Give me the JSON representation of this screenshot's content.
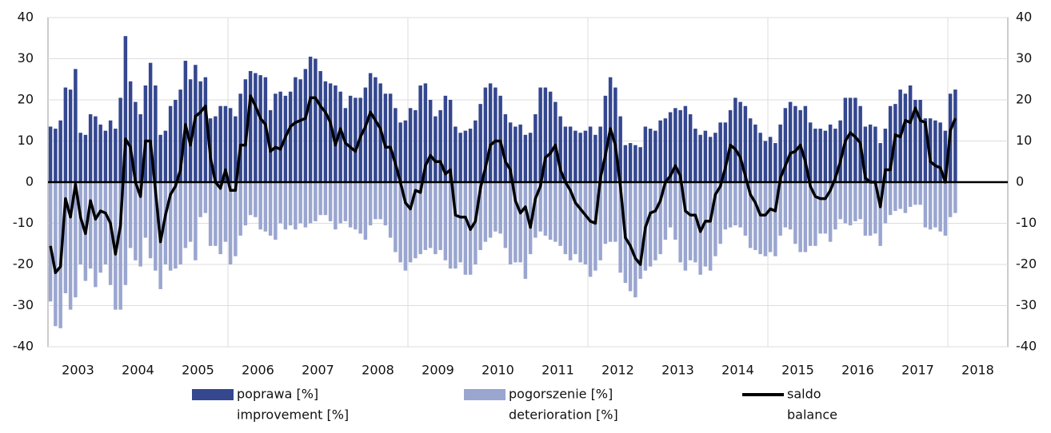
{
  "chart_data": {
    "type": "bar-line",
    "categories": [
      null,
      null,
      null,
      null,
      null,
      null,
      "2003",
      null,
      null,
      null,
      null,
      null,
      null,
      null,
      null,
      null,
      null,
      null,
      "2004",
      null,
      null,
      null,
      null,
      null,
      null,
      null,
      null,
      null,
      null,
      null,
      "2005",
      null,
      null,
      null,
      null,
      null,
      null,
      null,
      null,
      null,
      null,
      null,
      "2006",
      null,
      null,
      null,
      null,
      null,
      null,
      null,
      null,
      null,
      null,
      null,
      "2007",
      null,
      null,
      null,
      null,
      null,
      null,
      null,
      null,
      null,
      null,
      null,
      "2008",
      null,
      null,
      null,
      null,
      null,
      null,
      null,
      null,
      null,
      null,
      null,
      "2009",
      null,
      null,
      null,
      null,
      null,
      null,
      null,
      null,
      null,
      null,
      null,
      "2010",
      null,
      null,
      null,
      null,
      null,
      null,
      null,
      null,
      null,
      null,
      null,
      "2011",
      null,
      null,
      null,
      null,
      null,
      null,
      null,
      null,
      null,
      null,
      null,
      "2012",
      null,
      null,
      null,
      null,
      null,
      null,
      null,
      null,
      null,
      null,
      null,
      "2013",
      null,
      null,
      null,
      null,
      null,
      null,
      null,
      null,
      null,
      null,
      null,
      "2014",
      null,
      null,
      null,
      null,
      null,
      null,
      null,
      null,
      null,
      null,
      null,
      "2015",
      null,
      null,
      null,
      null,
      null,
      null,
      null,
      null,
      null,
      null,
      null,
      "2016",
      null,
      null,
      null,
      null,
      null,
      null,
      null,
      null,
      null,
      null,
      null,
      "2017",
      null,
      null,
      null,
      null,
      null,
      null,
      null,
      null,
      null,
      null,
      null,
      "2018",
      null,
      null,
      null,
      null,
      null
    ],
    "series": [
      {
        "name": [
          "poprawa [%]",
          "improvement [%]"
        ],
        "color": "#34478f",
        "kind": "bar",
        "values": [
          13.5,
          13,
          15,
          23,
          22.5,
          27.5,
          12,
          11.5,
          16.5,
          16,
          14,
          12.5,
          15,
          13,
          20.5,
          35.5,
          24.5,
          19.5,
          16.5,
          23.5,
          29,
          23.5,
          11.5,
          12.5,
          18.5,
          20,
          22.5,
          29.5,
          25,
          28.5,
          24.5,
          25.5,
          15.5,
          16,
          18.5,
          18.5,
          18,
          16,
          21.5,
          25,
          27,
          26.5,
          26,
          25.5,
          17.5,
          21.5,
          22,
          21,
          22,
          25.5,
          25,
          27.5,
          30.5,
          30,
          27,
          24.5,
          24,
          23.5,
          22,
          18,
          21,
          20.5,
          20.5,
          23,
          26.5,
          25.5,
          24,
          21.5,
          21.5,
          18,
          14.5,
          15,
          18,
          17.5,
          23.5,
          24,
          20,
          16,
          17.5,
          21,
          20,
          13.5,
          12,
          12.5,
          13,
          15,
          19,
          23,
          24,
          23,
          21,
          16.5,
          14.5,
          13.5,
          14,
          11.5,
          12,
          16.5,
          23,
          23,
          22,
          19.5,
          16,
          13.5,
          13.5,
          12.5,
          12,
          12.5,
          13.5,
          11.5,
          13.5,
          21,
          25.5,
          23,
          16,
          9,
          9.5,
          9,
          8.5,
          13.5,
          13,
          12.5,
          15,
          15.5,
          17,
          18,
          17.5,
          18.5,
          16.5,
          13,
          11.5,
          12.5,
          11,
          12,
          14.5,
          14.5,
          17.5,
          20.5,
          19.5,
          18.5,
          15.5,
          14,
          12,
          10,
          11,
          9.5,
          14,
          18,
          19.5,
          18.5,
          17.5,
          18.5,
          14.5,
          13,
          13,
          12.5,
          14,
          13,
          15,
          20.5,
          20.5,
          20.5,
          18.5,
          13.5,
          14,
          13.5,
          9.5,
          13,
          18.5,
          19,
          22.5,
          21.5,
          23.5,
          20,
          20,
          15.5,
          15.5,
          15,
          14.5,
          12.5,
          21.5,
          22.5,
          null,
          null,
          null,
          null,
          null,
          null,
          null,
          null,
          null,
          null
        ]
      },
      {
        "name": [
          "pogorszenie [%]",
          "deterioration [%]"
        ],
        "color": "#9aa6d0",
        "kind": "bar",
        "values": [
          -29,
          -35,
          -35.5,
          -27,
          -31,
          -28,
          -20,
          -24,
          -21,
          -25.5,
          -22,
          -20,
          -25,
          -31,
          -31,
          -25,
          -16,
          -19,
          -20.5,
          -13.5,
          -18.5,
          -21.5,
          -26,
          -20,
          -21.5,
          -21,
          -20,
          -16,
          -14.5,
          -19,
          -8.5,
          -7.5,
          -15.5,
          -15.5,
          -17.5,
          -14.5,
          -20,
          -18,
          -13,
          -10.5,
          -8,
          -8.5,
          -11.5,
          -12,
          -13,
          -14,
          -10,
          -11.5,
          -10.5,
          -11.5,
          -10,
          -11,
          -10,
          -9.5,
          -8,
          -8,
          -9.5,
          -11.5,
          -10,
          -9.5,
          -11,
          -11.5,
          -12.5,
          -14,
          -10.5,
          -9,
          -9,
          -10.5,
          -13.5,
          -17,
          -19.5,
          -21.5,
          -19.5,
          -18.5,
          -17.5,
          -16.5,
          -16,
          -17.5,
          -16.5,
          -19,
          -21,
          -21,
          -19.5,
          -22.5,
          -22.5,
          -20,
          -16.5,
          -14.5,
          -13.5,
          -12,
          -12.5,
          -16,
          -20,
          -19.5,
          -19.5,
          -23.5,
          -17.5,
          -13.5,
          -12,
          -13,
          -14,
          -14.5,
          -15.5,
          -17.5,
          -19,
          -17.5,
          -19.5,
          -20,
          -23,
          -21.5,
          -19,
          -15,
          -14.5,
          -14.5,
          -22,
          -24.5,
          -26.5,
          -28,
          -23.5,
          -21.5,
          -20.5,
          -19,
          -17.5,
          -14,
          -11,
          -14,
          -19.5,
          -21.5,
          -19,
          -19.5,
          -22.5,
          -20.5,
          -21.5,
          -18,
          -15,
          -11.5,
          -11,
          -10.5,
          -11,
          -13,
          -16,
          -16.5,
          -17.5,
          -18,
          -17,
          -18,
          -13,
          -11,
          -11.5,
          -15,
          -17,
          -17,
          -15.5,
          -15.5,
          -12.5,
          -12.5,
          -14.5,
          -11.5,
          -9,
          -10,
          -10.5,
          -9.5,
          -9,
          -13,
          -13,
          -12.5,
          -15.5,
          -10,
          -8,
          -7,
          -6.5,
          -7.5,
          -6,
          -5.5,
          -5.5,
          -11,
          -11.5,
          -11,
          -12,
          -13,
          -8.5,
          -7.5,
          null,
          null,
          null,
          null,
          null,
          null,
          null,
          null,
          null,
          null
        ]
      },
      {
        "name": [
          "saldo",
          "balance"
        ],
        "color": "#000000",
        "kind": "line",
        "values": [
          -15.5,
          -22,
          -20.5,
          -4,
          -8.5,
          -0.5,
          -8.5,
          -12.5,
          -4.5,
          -9,
          -7,
          -7.5,
          -10,
          -17.5,
          -10.5,
          10.5,
          8.5,
          0,
          -3.5,
          10,
          10,
          -2,
          -14.5,
          -8,
          -3,
          -1,
          3,
          14,
          9,
          16,
          17,
          18.5,
          6,
          0,
          -1.5,
          3,
          -2,
          -2,
          9,
          9,
          21,
          18.5,
          15.5,
          14,
          7.5,
          8.5,
          8,
          11,
          13.5,
          14.5,
          15,
          15.5,
          20.5,
          20.5,
          18.5,
          17,
          14.5,
          9,
          13,
          9.5,
          8.5,
          7.5,
          11,
          13.5,
          17,
          15,
          13,
          8.5,
          8.5,
          4.5,
          0,
          -5,
          -6.5,
          -2,
          -2.5,
          4,
          6.5,
          5,
          5,
          2,
          3,
          -8,
          -8.5,
          -8.5,
          -11.5,
          -9.5,
          -1.5,
          3.5,
          9,
          10,
          10,
          5,
          3,
          -4.5,
          -7.5,
          -6,
          -11,
          -4,
          -1,
          6,
          7,
          9,
          3,
          0,
          -2,
          -5,
          -6.5,
          -8,
          -9.5,
          -10,
          1,
          6.5,
          13,
          9,
          -1,
          -13.5,
          -15.5,
          -18.5,
          -20,
          -11,
          -7.5,
          -7,
          -4.5,
          0,
          1.5,
          4,
          1.5,
          -7,
          -8,
          -8,
          -12,
          -9.5,
          -9.5,
          -3,
          -1,
          3.5,
          9,
          8,
          6,
          1.5,
          -3,
          -5,
          -8,
          -8,
          -6.5,
          -7,
          1,
          4,
          7,
          7.5,
          9,
          5,
          -1,
          -3.5,
          -4,
          -4,
          -2,
          1,
          5,
          10,
          12,
          11,
          9.5,
          1,
          0,
          0,
          -6,
          3,
          3,
          11.5,
          11,
          15,
          14.5,
          18,
          15,
          14.5,
          5,
          4,
          3.5,
          0,
          12.5,
          15.5,
          null,
          null,
          null,
          null,
          null,
          null,
          null,
          null,
          null,
          null
        ]
      }
    ],
    "ylim": [
      -40,
      40
    ],
    "yticks": [
      -40,
      -30,
      -20,
      -10,
      0,
      10,
      20,
      30,
      40
    ],
    "y2lim": [
      -40,
      40
    ],
    "y2ticks": [
      -40,
      -30,
      -20,
      -10,
      0,
      10,
      20,
      30,
      40
    ],
    "grid": true
  }
}
